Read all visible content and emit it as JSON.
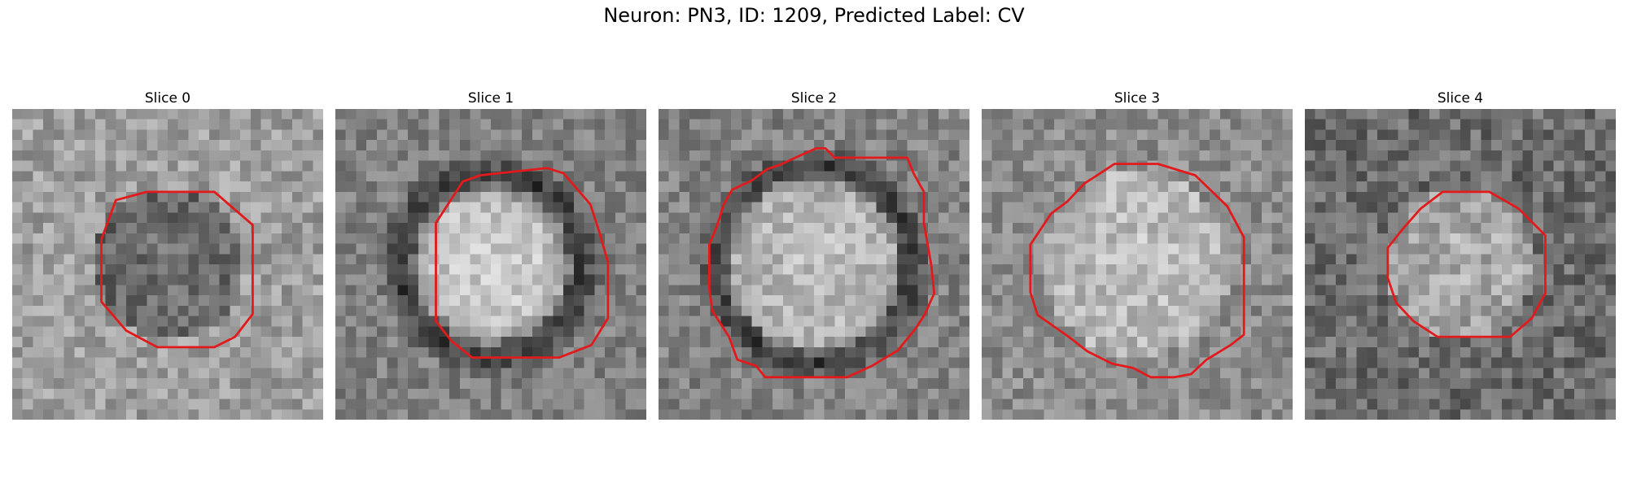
{
  "figure": {
    "title": "Neuron: PN3, ID: 1209, Predicted Label: CV"
  },
  "panels": [
    {
      "title": "Slice 0"
    },
    {
      "title": "Slice 1"
    },
    {
      "title": "Slice 2"
    },
    {
      "title": "Slice 3"
    },
    {
      "title": "Slice 4"
    }
  ],
  "colors": {
    "contour": "#e31a1c",
    "colormap": "gray"
  }
}
